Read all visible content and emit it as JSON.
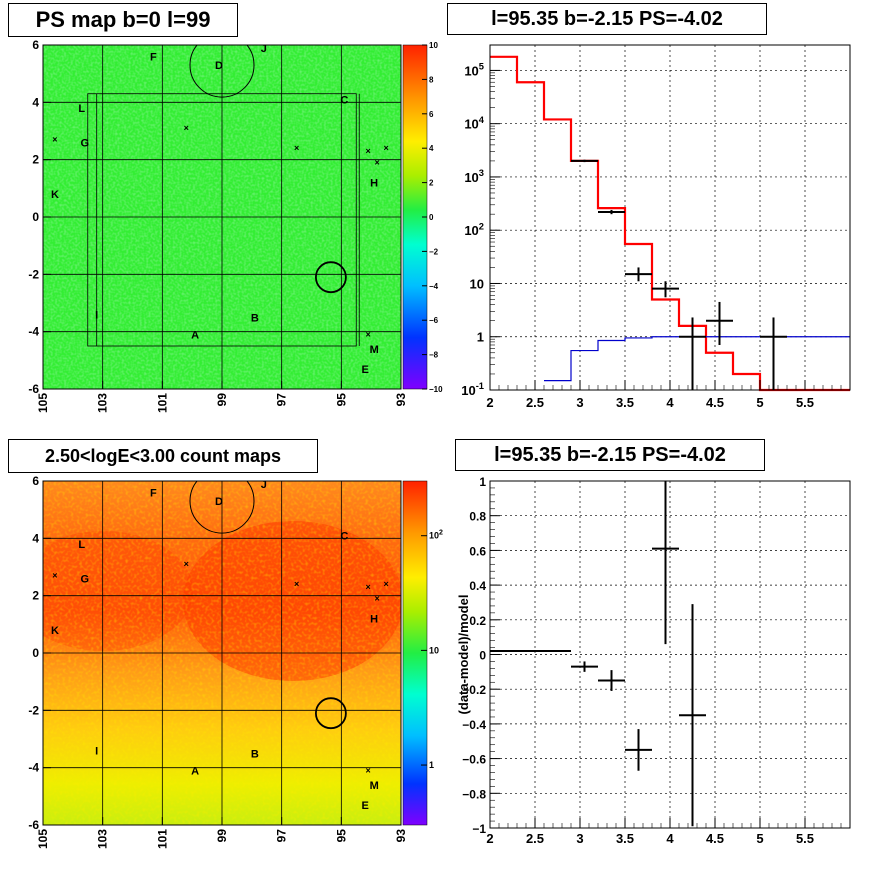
{
  "titles": {
    "tl": "PS map b=0 l=99",
    "tr": "l=95.35 b=-2.15 PS=-4.02",
    "bl": "2.50<logE<3.00 count maps",
    "br": "l=95.35 b=-2.15 PS=-4.02"
  },
  "map_ticks": {
    "x": [
      "105",
      "103",
      "101",
      "99",
      "97",
      "95",
      "93"
    ],
    "y": [
      "6",
      "4",
      "2",
      "0",
      "-2",
      "-4",
      "-6"
    ]
  },
  "source_labels": [
    "F",
    "J",
    "D",
    "C",
    "L",
    "G",
    "H",
    "K",
    "I",
    "B",
    "A",
    "M",
    "E"
  ],
  "colors": {
    "data": "#000000",
    "model": "#ff0000",
    "background": "#0000cc"
  },
  "chart_data": [
    {
      "type": "heatmap",
      "title": "PS map b=0 l=99",
      "xlabel": "",
      "ylabel": "",
      "x_ticks": [
        "105",
        "103",
        "101",
        "99",
        "97",
        "95",
        "93"
      ],
      "xlim": [
        105,
        93
      ],
      "ylim": [
        -6,
        6
      ],
      "colorbar": {
        "min": -10,
        "max": 10,
        "ticks": [
          "10",
          "8",
          "6",
          "4",
          "2",
          "0",
          "−2",
          "−4",
          "−6",
          "−8",
          "−10"
        ]
      },
      "dominant_value": 0,
      "sources": [
        {
          "label": "F",
          "l": 101.3,
          "b": 5.6
        },
        {
          "label": "J",
          "l": 97.6,
          "b": 5.9
        },
        {
          "label": "D",
          "l": 99.1,
          "b": 5.3
        },
        {
          "label": "C",
          "l": 94.9,
          "b": 4.1
        },
        {
          "label": "L",
          "l": 103.7,
          "b": 3.8
        },
        {
          "label": "G",
          "l": 103.6,
          "b": 2.6
        },
        {
          "label": "H",
          "l": 93.9,
          "b": 1.2
        },
        {
          "label": "K",
          "l": 104.6,
          "b": 0.8
        },
        {
          "label": "I",
          "l": 103.2,
          "b": -3.4
        },
        {
          "label": "B",
          "l": 97.9,
          "b": -3.5
        },
        {
          "label": "A",
          "l": 99.9,
          "b": -4.1
        },
        {
          "label": "M",
          "l": 93.9,
          "b": -4.6
        },
        {
          "label": "E",
          "l": 94.2,
          "b": -5.3
        }
      ]
    },
    {
      "type": "line",
      "title": "l=95.35 b=-2.15 PS=-4.02",
      "xlabel": "",
      "ylabel": "",
      "xlim": [
        2,
        6
      ],
      "ylim": [
        0.1,
        300000
      ],
      "yscale": "log",
      "x_ticks": [
        "2",
        "2.5",
        "3",
        "3.5",
        "4",
        "4.5",
        "5",
        "5.5"
      ],
      "y_ticks": [
        "10^-1",
        "1",
        "10",
        "10^2",
        "10^3",
        "10^4",
        "10^5"
      ],
      "grid": true,
      "series": [
        {
          "style": "step",
          "color": "#ff0000",
          "edges": [
            2.0,
            2.3,
            2.6,
            2.9,
            3.2,
            3.5,
            3.8,
            4.1,
            4.4,
            4.7,
            5.0,
            6.0
          ],
          "values": [
            180000,
            60000,
            12000,
            2000,
            260,
            55,
            5,
            1.6,
            0.5,
            0.2,
            0.1
          ]
        },
        {
          "style": "step",
          "color": "#0000cc",
          "edges": [
            2.6,
            2.9,
            3.2,
            3.5,
            3.8,
            4.1,
            4.4,
            6.0
          ],
          "values": [
            0.15,
            0.55,
            0.85,
            0.95,
            1.0,
            1.0,
            1.0
          ]
        },
        {
          "style": "errorbars",
          "color": "#000000",
          "points": [
            {
              "x": 3.05,
              "xerr": 0.15,
              "y": 2000,
              "ylo": 1900,
              "yhi": 2100
            },
            {
              "x": 3.35,
              "xerr": 0.15,
              "y": 220,
              "ylo": 200,
              "yhi": 240
            },
            {
              "x": 3.65,
              "xerr": 0.15,
              "y": 15,
              "ylo": 11,
              "yhi": 20
            },
            {
              "x": 3.95,
              "xerr": 0.15,
              "y": 8,
              "ylo": 5.5,
              "yhi": 11
            },
            {
              "x": 4.25,
              "xerr": 0.15,
              "y": 1,
              "ylo": 0.1,
              "yhi": 2.3
            },
            {
              "x": 4.55,
              "xerr": 0.15,
              "y": 2,
              "ylo": 0.7,
              "yhi": 4.5
            },
            {
              "x": 5.15,
              "xerr": 0.15,
              "y": 1,
              "ylo": 0.1,
              "yhi": 2.3
            }
          ]
        }
      ]
    },
    {
      "type": "heatmap",
      "title": "2.50<logE<3.00 count maps",
      "xlabel": "",
      "ylabel": "",
      "x_ticks": [
        "105",
        "103",
        "101",
        "99",
        "97",
        "95",
        "93"
      ],
      "xlim": [
        105,
        93
      ],
      "ylim": [
        -6,
        6
      ],
      "colorbar": {
        "scale": "log",
        "min": 0.3,
        "max": 300,
        "ticks": [
          "10^2",
          "10",
          "1"
        ]
      }
    },
    {
      "type": "scatter",
      "title": "l=95.35 b=-2.15 PS=-4.02",
      "xlabel": "",
      "ylabel": "(data-model)/model",
      "xlim": [
        2,
        6
      ],
      "ylim": [
        -1,
        1
      ],
      "x_ticks": [
        "2",
        "2.5",
        "3",
        "3.5",
        "4",
        "4.5",
        "5",
        "5.5"
      ],
      "y_ticks": [
        "−1",
        "−0.8",
        "−0.6",
        "−0.4",
        "−0.2",
        "0",
        "0.2",
        "0.4",
        "0.6",
        "0.8",
        "1"
      ],
      "grid": true,
      "points": [
        {
          "x": 2.15,
          "xerr": 0.15,
          "y": 0.02,
          "yerr": 0.005
        },
        {
          "x": 2.45,
          "xerr": 0.15,
          "y": 0.02,
          "yerr": 0.005
        },
        {
          "x": 2.75,
          "xerr": 0.15,
          "y": 0.02,
          "yerr": 0.005
        },
        {
          "x": 3.05,
          "xerr": 0.15,
          "y": -0.07,
          "yerr": 0.03
        },
        {
          "x": 3.35,
          "xerr": 0.15,
          "y": -0.15,
          "yerr": 0.06
        },
        {
          "x": 3.65,
          "xerr": 0.15,
          "y": -0.55,
          "yerr": 0.12
        },
        {
          "x": 3.95,
          "xerr": 0.15,
          "y": 0.61,
          "yerr": 0.55
        },
        {
          "x": 4.25,
          "xerr": 0.15,
          "y": -0.35,
          "yerr": 0.64
        }
      ]
    }
  ]
}
